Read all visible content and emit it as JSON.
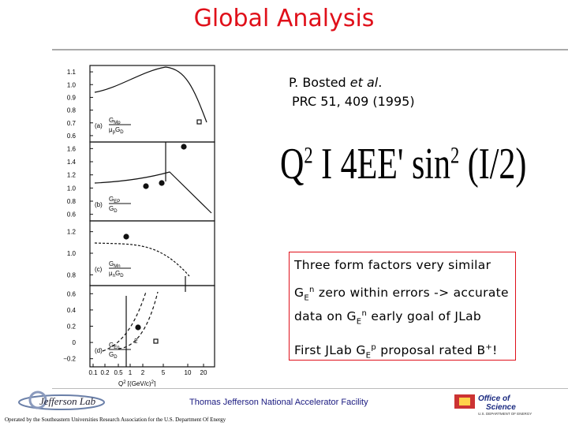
{
  "title": "Global Analysis",
  "reference": {
    "authors": [
      "P. Bosted ",
      "et al",
      "."
    ],
    "journal": "PRC 51, 409 (1995)"
  },
  "formula": [
    "Q",
    "2",
    " Ι 4EE' sin",
    "2",
    " (Ι/2)"
  ],
  "bullets": [
    [
      "Three form factors very similar"
    ],
    [
      "G",
      "E",
      "n",
      " zero within errors -> accurate data on G",
      "E",
      "n",
      " early goal of JLab"
    ],
    [
      "First JLab G",
      "E",
      "p",
      " proposal rated B",
      "+",
      "!"
    ]
  ],
  "figure": {
    "panels": [
      {
        "label": "(a)",
        "top": [
          "G",
          "Mp"
        ],
        "bottom": [
          "μ",
          "p",
          "G",
          "D"
        ],
        "yticks": [
          "1.1",
          "1.0",
          "0.9",
          "0.8",
          "0.7",
          "0.6"
        ]
      },
      {
        "label": "(b)",
        "top": [
          "G",
          "EP"
        ],
        "bottom": [
          "G",
          "D"
        ],
        "yticks": [
          "1.6",
          "1.4",
          "1.2",
          "1.0",
          "0.8",
          "0.6"
        ]
      },
      {
        "label": "(c)",
        "top": [
          "G",
          "Mn"
        ],
        "bottom": [
          "μ",
          "n",
          "G",
          "D"
        ],
        "yticks": [
          "1.2",
          "1.0",
          "0.8"
        ]
      },
      {
        "label": "(d)",
        "top": [
          "G",
          "En"
        ],
        "bottom": [
          "G",
          "D"
        ],
        "power": "2",
        "yticks": [
          "0.6",
          "0.4",
          "0.2",
          "0",
          "−0.2"
        ]
      }
    ],
    "xticks": [
      "0.1",
      "0.2",
      "0.5",
      "1",
      "2",
      "5",
      "10",
      "20"
    ],
    "xlabel": [
      "Q",
      "2",
      " [(GeV/c)",
      "2",
      "]"
    ]
  },
  "footer": {
    "facility": "Thomas Jefferson National Accelerator Facility",
    "operated": "Operated by the Southeastern Universities Research Association for the U.S. Department Of Energy",
    "left_logo": "Jefferson Lab",
    "right_logo": [
      "Office of",
      "Science",
      "U.S. DEPARTMENT OF ENERGY"
    ]
  }
}
